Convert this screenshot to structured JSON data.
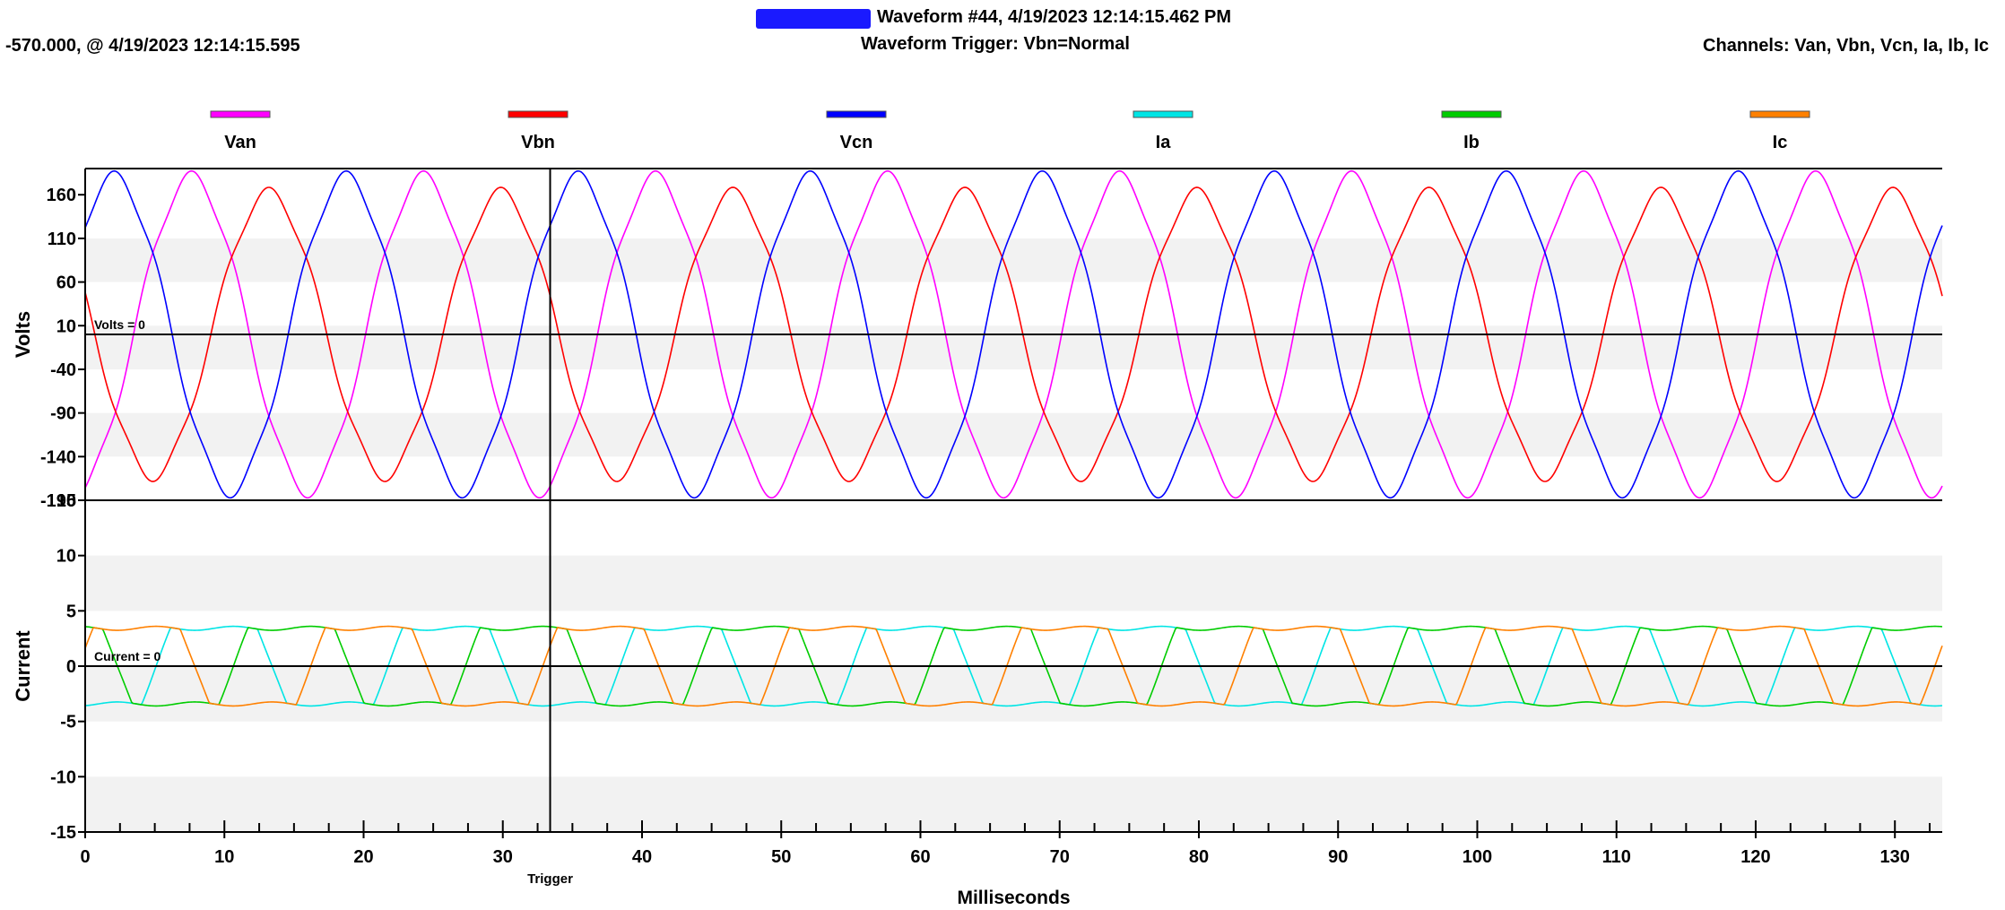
{
  "header": {
    "title": "Waveform #44, 4/19/2023 12:14:15.462 PM",
    "trigger": "Waveform Trigger: Vbn=Normal",
    "cursor_readout": "-570.000, @ 4/19/2023 12:14:15.595",
    "channels": "Channels:  Van, Vbn, Vcn, Ia, Ib, Ic"
  },
  "colors": {
    "Van": "#ff00ff",
    "Vbn": "#ff0000",
    "Vcn": "#0000ff",
    "Ia": "#00e5e5",
    "Ib": "#00cc00",
    "Ic": "#ff8000"
  },
  "chart_data": [
    {
      "type": "line",
      "ylabel": "Volts",
      "ylim": [
        -190,
        190
      ],
      "yticks": [
        160,
        110,
        60,
        10,
        -40,
        -90,
        -140,
        -190
      ],
      "zero_label": "Volts = 0",
      "xlim": [
        0,
        133.4
      ],
      "series": [
        {
          "name": "Van",
          "amplitude": 180,
          "phase_deg": -75,
          "frequency_hz": 60
        },
        {
          "name": "Vbn",
          "amplitude": 162,
          "phase_deg": 165,
          "frequency_hz": 60
        },
        {
          "name": "Vcn",
          "amplitude": 180,
          "phase_deg": 45,
          "frequency_hz": 60
        }
      ]
    },
    {
      "type": "line",
      "ylabel": "Current",
      "ylim": [
        -15,
        15
      ],
      "yticks": [
        15,
        10,
        5,
        0,
        -5,
        -10,
        -15
      ],
      "zero_label": "Current = 0",
      "xlim": [
        0,
        133.4
      ],
      "series": [
        {
          "name": "Ia",
          "amplitude": 3.6,
          "phase_deg": -110,
          "frequency_hz": 60
        },
        {
          "name": "Ib",
          "amplitude": 3.6,
          "phase_deg": 130,
          "frequency_hz": 60
        },
        {
          "name": "Ic",
          "amplitude": 3.6,
          "phase_deg": 10,
          "frequency_hz": 60
        }
      ]
    }
  ],
  "x_axis": {
    "label": "Milliseconds",
    "ticks": [
      0,
      10,
      20,
      30,
      40,
      50,
      60,
      70,
      80,
      90,
      100,
      110,
      120,
      130
    ],
    "trigger_ms": 33.4,
    "trigger_label": "Trigger"
  },
  "legend": [
    "Van",
    "Vbn",
    "Vcn",
    "Ia",
    "Ib",
    "Ic"
  ]
}
